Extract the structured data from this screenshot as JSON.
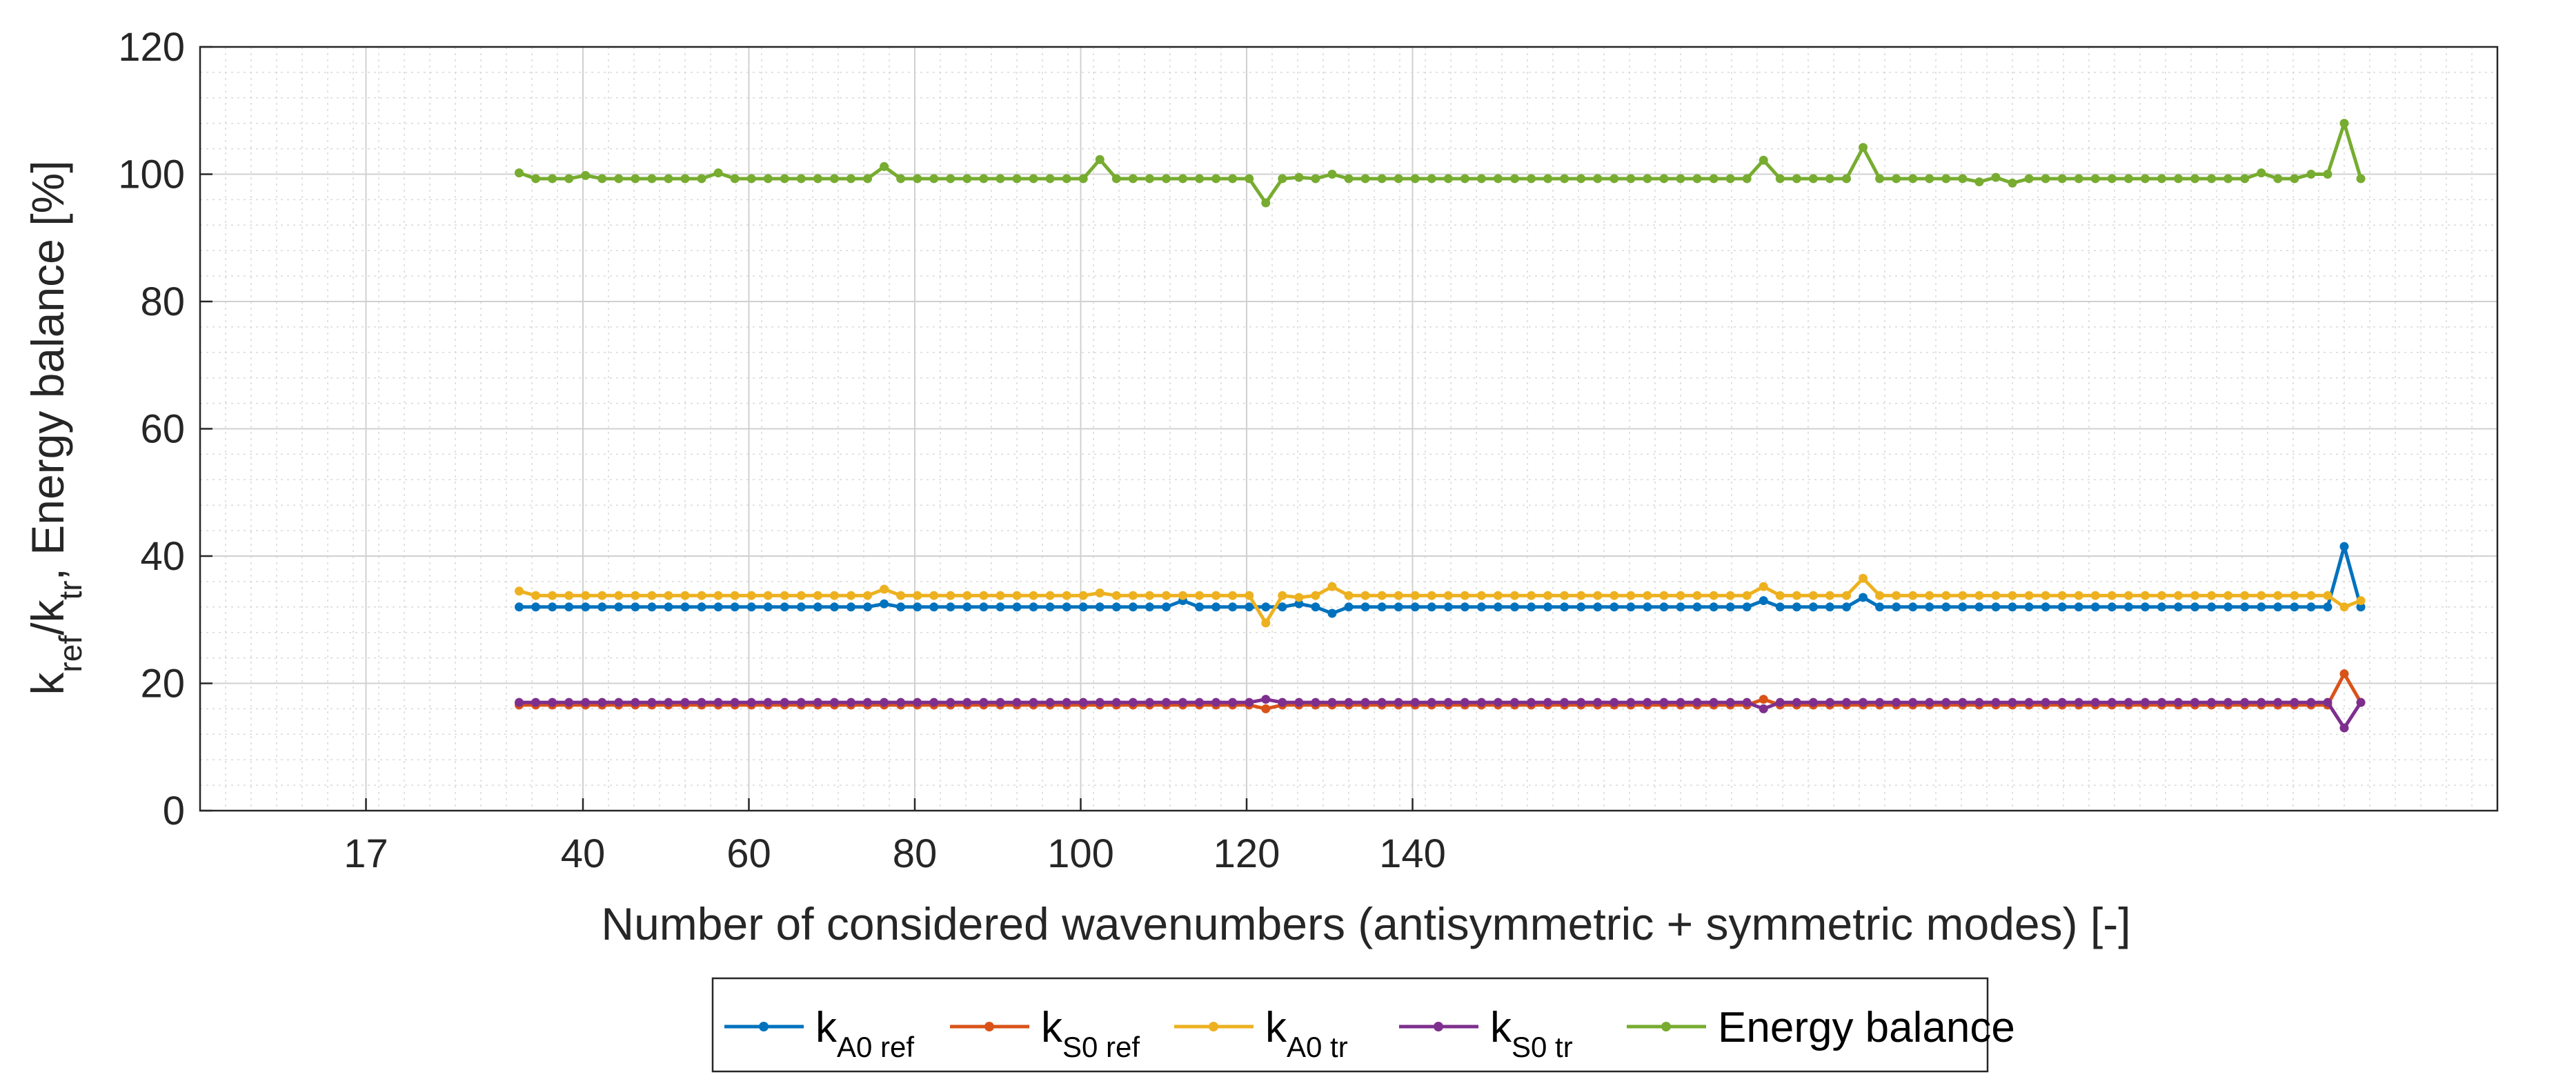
{
  "chart_data": {
    "type": "line",
    "title": "",
    "xlabel": "Number of considered wavenumbers (antisymmetric + symmetric modes) [-]",
    "ylabel": {
      "parts": [
        {
          "text": "k",
          "sub": "ref"
        },
        {
          "text": "/k",
          "sub": "tr"
        },
        {
          "text": ", Energy balance [%]",
          "sub": ""
        }
      ]
    },
    "xlim": [
      0,
      180
    ],
    "ylim": [
      0,
      120
    ],
    "xticks": [
      {
        "value": 13,
        "label": "17"
      },
      {
        "value": 30,
        "label": "40"
      },
      {
        "value": 43,
        "label": "60"
      },
      {
        "value": 56,
        "label": "80"
      },
      {
        "value": 69,
        "label": "100"
      },
      {
        "value": 82,
        "label": "120"
      },
      {
        "value": 95,
        "label": "140"
      }
    ],
    "yticks": [
      0,
      20,
      40,
      60,
      80,
      100,
      120
    ],
    "grid": true,
    "minor_grid": true,
    "legend_position": "bottom-outside",
    "x_start": 25,
    "x_step": 1.3,
    "series": [
      {
        "name": "k_A0 ref",
        "label_main": "k",
        "label_sub": "A0 ref",
        "color": "#0072BD",
        "base": 32,
        "overrides": {
          "22": 32.5,
          "40": 33,
          "47": 32.5,
          "49": 31,
          "75": 33,
          "81": 33.5,
          "110": 41.5
        }
      },
      {
        "name": "k_S0 ref",
        "label_main": "k",
        "label_sub": "S0 ref",
        "color": "#D95319",
        "base": 16.6,
        "overrides": {
          "45": 16,
          "75": 17.5,
          "110": 21.5,
          "111": 17
        }
      },
      {
        "name": "k_A0 tr",
        "label_main": "k",
        "label_sub": "A0 tr",
        "color": "#EDB120",
        "base": 33.8,
        "overrides": {
          "0": 34.5,
          "22": 34.8,
          "35": 34.2,
          "45": 29.5,
          "47": 33.5,
          "49": 35.2,
          "75": 35.2,
          "81": 36.5,
          "110": 32,
          "111": 33
        }
      },
      {
        "name": "k_S0 tr",
        "label_main": "k",
        "label_sub": "S0 tr",
        "color": "#7E2F8E",
        "base": 17,
        "overrides": {
          "45": 17.5,
          "75": 16,
          "110": 13,
          "111": 17
        }
      },
      {
        "name": "Energy balance",
        "label_main": "Energy balance",
        "label_sub": "",
        "color": "#77AC30",
        "base": 99.3,
        "overrides": {
          "0": 100.2,
          "4": 99.8,
          "12": 100.2,
          "22": 101.2,
          "35": 102.3,
          "45": 95.5,
          "47": 99.5,
          "49": 100,
          "75": 102.2,
          "81": 104.2,
          "88": 98.8,
          "89": 99.5,
          "90": 98.6,
          "105": 100.2,
          "108": 100,
          "109": 100,
          "110": 108,
          "111": 99.3
        }
      }
    ],
    "point_count": 112
  }
}
